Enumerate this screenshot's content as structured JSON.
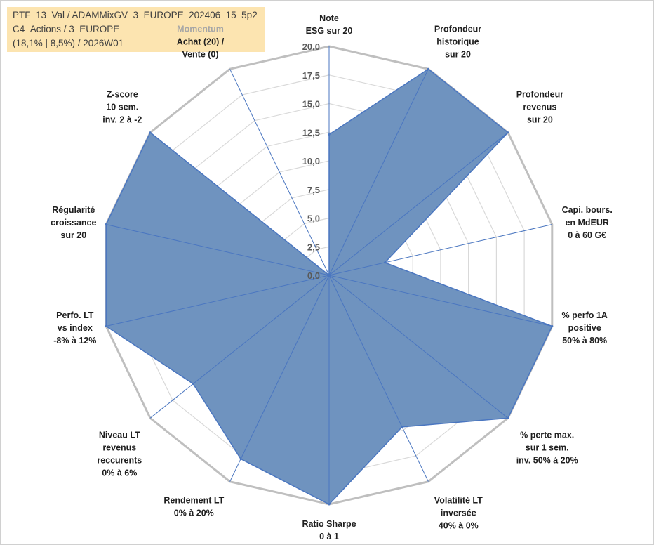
{
  "info": {
    "line1": "PTF_13_Val / ADAMMixGV_3_EUROPE_202406_15_5p2",
    "line2": "C4_Actions / 3_EUROPE",
    "line3": "(18,1% | 8,5%) / 2026W01"
  },
  "colors": {
    "fill": "#6f93bf",
    "stroke": "#4a76c0",
    "grid": "#d9d9d9",
    "outer_grid": "#bfbfbf"
  },
  "chart_data": {
    "type": "radar",
    "rmin": 0,
    "rmax": 20,
    "ticks": [
      "0,0",
      "2,5",
      "5,0",
      "7,5",
      "10,0",
      "12,5",
      "15,0",
      "17,5",
      "20,0"
    ],
    "axes": [
      {
        "lines": [
          "Note",
          "ESG sur 20"
        ],
        "value": 12.3
      },
      {
        "lines": [
          "Profondeur",
          "historique",
          "sur 20"
        ],
        "value": 20
      },
      {
        "lines": [
          "Profondeur",
          "revenus",
          "sur 20"
        ],
        "value": 20
      },
      {
        "lines": [
          "Capi. bours.",
          "en MdEUR",
          "0 à 60 G€"
        ],
        "value": 5.0
      },
      {
        "lines": [
          "% perfo 1A",
          "positive",
          "50% à 80%"
        ],
        "value": 20
      },
      {
        "lines": [
          "% perte max.",
          "sur 1 sem.",
          "inv. 50% à 20%"
        ],
        "value": 20
      },
      {
        "lines": [
          "Volatilité LT",
          "inversée",
          "40% à 0%"
        ],
        "value": 14.7
      },
      {
        "lines": [
          "Ratio Sharpe",
          "0 à 1"
        ],
        "value": 20
      },
      {
        "lines": [
          "Rendement LT",
          "0% à 20%"
        ],
        "value": 17.8
      },
      {
        "lines": [
          "Niveau LT",
          "revenus",
          "reccurents",
          "0% à 6%"
        ],
        "value": 15.2
      },
      {
        "lines": [
          "Perfo. LT",
          "vs index",
          "-8% à 12%"
        ],
        "value": 20
      },
      {
        "lines": [
          "Régularité",
          "croissance",
          "sur 20"
        ],
        "value": 20
      },
      {
        "lines": [
          "Z-score",
          "10 sem.",
          "inv. 2 à -2"
        ],
        "value": 20
      },
      {
        "lines": [
          "Momentum",
          "Achat (20) /",
          "Vente (0)"
        ],
        "value": 0
      }
    ]
  }
}
